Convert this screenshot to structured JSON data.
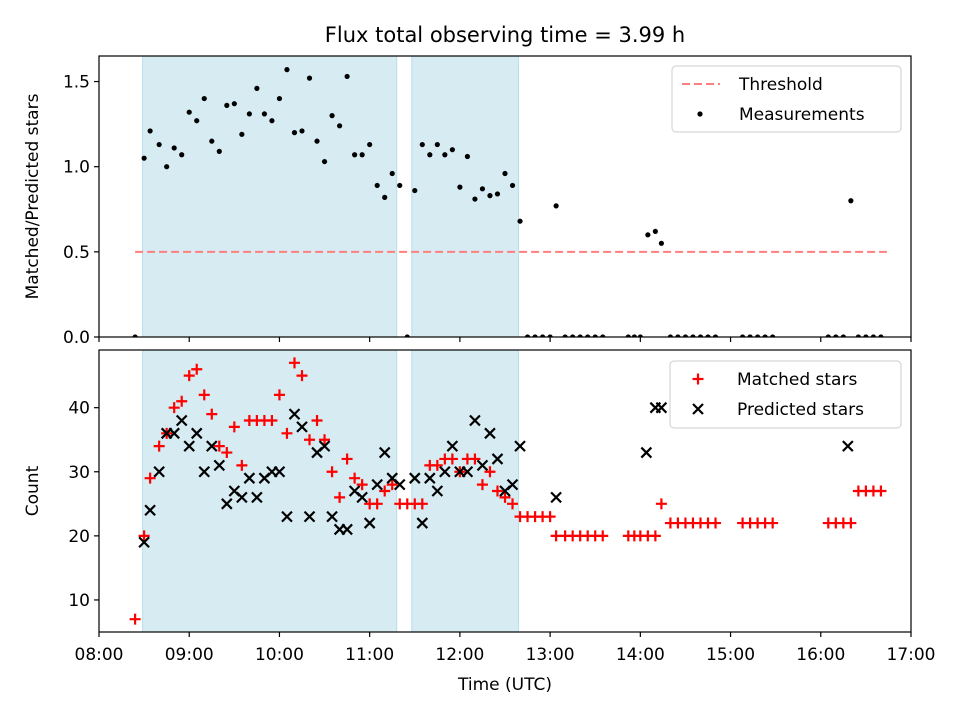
{
  "chart_data": [
    {
      "type": "scatter",
      "title": "Flux total observing time = 3.99 h",
      "ylabel": "Matched/Predicted stars",
      "xlabel": "",
      "xlim": [
        "08:00",
        "17:00"
      ],
      "ylim": [
        0,
        1.65
      ],
      "yticks": [
        "0.0",
        "0.5",
        "1.0",
        "1.5"
      ],
      "legend_position": "top-right",
      "legend": [
        "Threshold",
        "Measurements"
      ],
      "shaded_intervals": [
        [
          "08:29",
          "11:18"
        ],
        [
          "11:28",
          "12:39"
        ]
      ],
      "threshold": {
        "name": "Threshold",
        "value": 0.5,
        "x_range": [
          "08:24",
          "16:44"
        ],
        "color": "#ff7f7f",
        "style": "dashed"
      },
      "series": [
        {
          "name": "Measurements",
          "color": "#000000",
          "x": [
            "08:24",
            "08:30",
            "08:34",
            "08:40",
            "08:45",
            "08:50",
            "08:55",
            "09:00",
            "09:05",
            "09:10",
            "09:15",
            "09:20",
            "09:25",
            "09:30",
            "09:35",
            "09:40",
            "09:45",
            "09:50",
            "09:55",
            "10:00",
            "10:05",
            "10:10",
            "10:15",
            "10:20",
            "10:25",
            "10:30",
            "10:35",
            "10:40",
            "10:45",
            "10:50",
            "10:55",
            "11:00",
            "11:05",
            "11:10",
            "11:15",
            "11:20",
            "11:25",
            "11:30",
            "11:35",
            "11:40",
            "11:45",
            "11:50",
            "11:55",
            "12:00",
            "12:05",
            "12:10",
            "12:15",
            "12:20",
            "12:25",
            "12:30",
            "12:35",
            "12:40",
            "12:45",
            "12:50",
            "12:55",
            "13:00",
            "13:04",
            "13:10",
            "13:15",
            "13:20",
            "13:25",
            "13:30",
            "13:35",
            "13:52",
            "13:56",
            "14:00",
            "14:05",
            "14:10",
            "14:14",
            "14:20",
            "14:25",
            "14:30",
            "14:35",
            "14:40",
            "14:45",
            "14:50",
            "15:08",
            "15:13",
            "15:18",
            "15:23",
            "15:28",
            "16:05",
            "16:10",
            "16:15",
            "16:20",
            "16:25",
            "16:30",
            "16:35",
            "16:40"
          ],
          "y": [
            0,
            1.05,
            1.21,
            1.13,
            1.0,
            1.11,
            1.07,
            1.32,
            1.27,
            1.4,
            1.15,
            1.09,
            1.36,
            1.37,
            1.19,
            1.31,
            1.46,
            1.31,
            1.27,
            1.4,
            1.57,
            1.2,
            1.21,
            1.52,
            1.15,
            1.03,
            1.3,
            1.24,
            1.53,
            1.07,
            1.07,
            1.13,
            0.89,
            0.82,
            0.96,
            0.89,
            0,
            0.86,
            1.13,
            1.07,
            1.13,
            1.07,
            1.1,
            0.88,
            1.06,
            0.81,
            0.87,
            0.83,
            0.84,
            0.96,
            0.89,
            0.68,
            0,
            0,
            0,
            0,
            0.77,
            0,
            0,
            0,
            0,
            0,
            0,
            0,
            0,
            0,
            0.6,
            0.62,
            0.55,
            0,
            0,
            0,
            0,
            0,
            0,
            0,
            0,
            0,
            0,
            0,
            0,
            0,
            0,
            0,
            0.8,
            0,
            0,
            0,
            0
          ]
        }
      ]
    },
    {
      "type": "scatter",
      "title": "",
      "ylabel": "Count",
      "xlabel": "Time (UTC)",
      "xlim": [
        "08:00",
        "17:00"
      ],
      "ylim": [
        5,
        49
      ],
      "yticks": [
        "10",
        "20",
        "30",
        "40"
      ],
      "xticks": [
        "08:00",
        "09:00",
        "10:00",
        "11:00",
        "12:00",
        "13:00",
        "14:00",
        "15:00",
        "16:00",
        "17:00"
      ],
      "legend_position": "top-right",
      "legend": [
        "Matched stars",
        "Predicted stars"
      ],
      "shaded_intervals": [
        [
          "08:29",
          "11:18"
        ],
        [
          "11:28",
          "12:39"
        ]
      ],
      "series": [
        {
          "name": "Matched stars",
          "color": "#ff0000",
          "marker": "+",
          "x": [
            "08:24",
            "08:30",
            "08:34",
            "08:40",
            "08:45",
            "08:50",
            "08:55",
            "09:00",
            "09:05",
            "09:10",
            "09:15",
            "09:20",
            "09:25",
            "09:30",
            "09:35",
            "09:40",
            "09:45",
            "09:50",
            "09:55",
            "10:00",
            "10:05",
            "10:10",
            "10:15",
            "10:20",
            "10:25",
            "10:30",
            "10:35",
            "10:40",
            "10:45",
            "10:50",
            "10:55",
            "11:00",
            "11:05",
            "11:10",
            "11:15",
            "11:20",
            "11:25",
            "11:30",
            "11:35",
            "11:40",
            "11:45",
            "11:50",
            "11:55",
            "12:00",
            "12:05",
            "12:10",
            "12:15",
            "12:20",
            "12:25",
            "12:30",
            "12:35",
            "12:40",
            "12:45",
            "12:50",
            "12:55",
            "13:00",
            "13:04",
            "13:10",
            "13:15",
            "13:20",
            "13:25",
            "13:30",
            "13:35",
            "13:52",
            "13:56",
            "14:00",
            "14:05",
            "14:10",
            "14:14",
            "14:20",
            "14:25",
            "14:30",
            "14:35",
            "14:40",
            "14:45",
            "14:50",
            "15:08",
            "15:13",
            "15:18",
            "15:23",
            "15:28",
            "16:05",
            "16:10",
            "16:15",
            "16:20",
            "16:25",
            "16:30",
            "16:35",
            "16:40"
          ],
          "y": [
            7,
            20,
            29,
            34,
            36,
            40,
            41,
            45,
            46,
            42,
            39,
            34,
            33,
            37,
            31,
            38,
            38,
            38,
            38,
            42,
            36,
            47,
            45,
            35,
            38,
            35,
            30,
            26,
            32,
            29,
            28,
            25,
            25,
            27,
            28,
            25,
            25,
            25,
            25,
            31,
            31,
            32,
            32,
            30,
            32,
            32,
            28,
            30,
            27,
            26,
            25,
            23,
            23,
            23,
            23,
            23,
            20,
            20,
            20,
            20,
            20,
            20,
            20,
            20,
            20,
            20,
            20,
            20,
            25,
            22,
            22,
            22,
            22,
            22,
            22,
            22,
            22,
            22,
            22,
            22,
            22,
            22,
            22,
            22,
            22,
            27,
            27,
            27,
            27
          ]
        },
        {
          "name": "Predicted stars",
          "color": "#000000",
          "marker": "x",
          "x": [
            "08:30",
            "08:34",
            "08:40",
            "08:45",
            "08:50",
            "08:55",
            "09:00",
            "09:05",
            "09:10",
            "09:15",
            "09:20",
            "09:25",
            "09:30",
            "09:35",
            "09:40",
            "09:45",
            "09:50",
            "09:55",
            "10:00",
            "10:05",
            "10:10",
            "10:15",
            "10:20",
            "10:25",
            "10:30",
            "10:35",
            "10:40",
            "10:45",
            "10:50",
            "10:55",
            "11:00",
            "11:05",
            "11:10",
            "11:15",
            "11:20",
            "11:30",
            "11:35",
            "11:40",
            "11:45",
            "11:50",
            "11:55",
            "12:00",
            "12:05",
            "12:10",
            "12:15",
            "12:20",
            "12:25",
            "12:30",
            "12:35",
            "12:40",
            "13:04",
            "14:04",
            "14:10",
            "14:14",
            "16:18"
          ],
          "y": [
            19,
            24,
            30,
            36,
            36,
            38,
            34,
            36,
            30,
            34,
            31,
            25,
            27,
            26,
            29,
            26,
            29,
            30,
            30,
            23,
            39,
            37,
            23,
            33,
            34,
            23,
            21,
            21,
            27,
            26,
            22,
            28,
            33,
            29,
            28,
            29,
            22,
            29,
            27,
            30,
            34,
            30,
            30,
            38,
            31,
            36,
            32,
            27,
            28,
            34,
            26,
            33,
            40,
            40,
            34
          ]
        }
      ]
    }
  ]
}
